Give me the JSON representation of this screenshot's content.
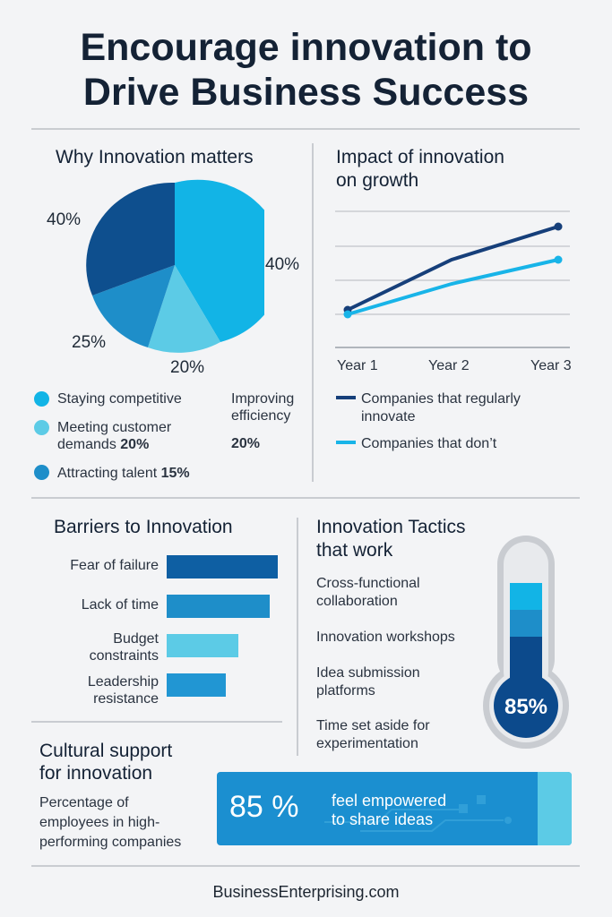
{
  "title_line1": "Encourage innovation to",
  "title_line2": "Drive Business Success",
  "colors": {
    "dark_blue": "#1b4f8f",
    "blue": "#1e96d0",
    "light_blue": "#5ccbe6",
    "cyan": "#12b4e6",
    "navy": "#0c4a8c"
  },
  "why": {
    "heading": "Why Innovation matters",
    "pct_labels": [
      "40%",
      "40%",
      "25%",
      "20%"
    ],
    "legend": [
      {
        "label": "Staying competitive",
        "color": "#12b4e6",
        "icon": "dot-icon"
      },
      {
        "label_line1": "Meeting customer",
        "label_line2": "demands",
        "value": "20%",
        "color": "#5ccbe6",
        "icon": "dot-icon"
      },
      {
        "label": "Attracting talent",
        "value": "15%",
        "color": "#1e8ec9",
        "icon": "dot-icon"
      }
    ],
    "side_label_line1": "Improving",
    "side_label_line2": "efficiency",
    "side_value": "20%"
  },
  "impact": {
    "heading_line1": "Impact of innovation",
    "heading_line2": "on growth",
    "x_labels": [
      "Year 1",
      "Year 2",
      "Year 3"
    ],
    "series": [
      {
        "name_line1": "Companies that regularly",
        "name_line2": "innovate",
        "color": "#163f7a"
      },
      {
        "name": "Companies that don’t",
        "color": "#18b4e8"
      }
    ]
  },
  "barriers": {
    "heading": "Barriers to Innovation",
    "items": [
      {
        "label_line1": "Fear of failure",
        "label_line2": "",
        "value": 1.0,
        "color": "#0e5fa3"
      },
      {
        "label_line1": "Lack of time",
        "label_line2": "",
        "value": 0.92,
        "color": "#1e8ec9"
      },
      {
        "label_line1": "Budget",
        "label_line2": "constraints",
        "value": 0.64,
        "color": "#5ccbe6"
      },
      {
        "label_line1": "Leadership",
        "label_line2": "resistance",
        "value": 0.53,
        "color": "#2196d3"
      }
    ]
  },
  "tactics": {
    "heading_line1": "Innovation Tactics",
    "heading_line2": "that work",
    "items": [
      {
        "line1": "Cross-functional",
        "line2": "collaboration"
      },
      {
        "line1": "Innovation workshops",
        "line2": ""
      },
      {
        "line1": "Idea submission",
        "line2": "platforms"
      },
      {
        "line1": "Time set aside for",
        "line2": "experimentation"
      }
    ],
    "thermo_value": "85%"
  },
  "culture": {
    "heading_line1": "Cultural support",
    "heading_line2": "for innovation",
    "desc_line1": "Percentage of",
    "desc_line2": "employees in  high-",
    "desc_line3": "performing companies",
    "banner_value": "85 %",
    "banner_text_line1": "feel empowered",
    "banner_text_line2": "to share ideas"
  },
  "footer": "BusinessEnterprising.com"
}
